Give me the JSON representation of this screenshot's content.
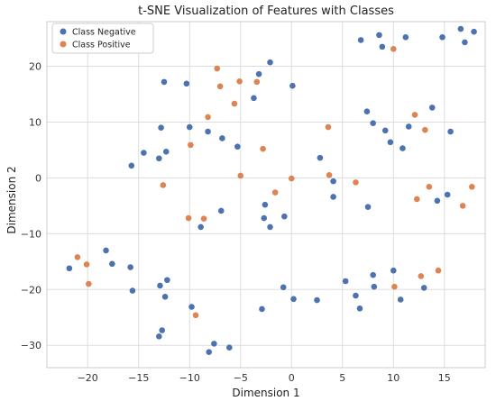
{
  "chart_data": {
    "type": "scatter",
    "title": "t-SNE Visualization of Features with Classes",
    "xlabel": "Dimension 1",
    "ylabel": "Dimension 2",
    "xlim": [
      -24,
      19
    ],
    "ylim": [
      -34,
      28
    ],
    "xticks": [
      -20,
      -15,
      -10,
      -5,
      0,
      5,
      10,
      15
    ],
    "yticks": [
      -30,
      -20,
      -10,
      0,
      10,
      20
    ],
    "grid": true,
    "legend_position": "top-left",
    "series": [
      {
        "name": "Class Negative",
        "color": "#4c72b0",
        "points": [
          [
            -21.8,
            -16.2
          ],
          [
            -18.2,
            -13.0
          ],
          [
            -17.6,
            -15.4
          ],
          [
            -15.8,
            -16.0
          ],
          [
            -15.6,
            -20.2
          ],
          [
            -15.7,
            2.2
          ],
          [
            -14.5,
            4.5
          ],
          [
            -13.0,
            3.5
          ],
          [
            -12.3,
            4.7
          ],
          [
            -12.8,
            9.0
          ],
          [
            -12.5,
            17.2
          ],
          [
            -10.3,
            16.9
          ],
          [
            -10.0,
            9.1
          ],
          [
            -8.2,
            8.3
          ],
          [
            -6.8,
            7.1
          ],
          [
            -5.3,
            5.6
          ],
          [
            -3.7,
            14.3
          ],
          [
            -3.2,
            18.6
          ],
          [
            -2.1,
            20.7
          ],
          [
            0.1,
            16.5
          ],
          [
            -12.9,
            -19.3
          ],
          [
            -12.4,
            -21.3
          ],
          [
            -12.2,
            -18.3
          ],
          [
            -13.0,
            -28.4
          ],
          [
            -12.7,
            -27.3
          ],
          [
            -9.8,
            -23.1
          ],
          [
            -8.9,
            -8.8
          ],
          [
            -6.9,
            -5.9
          ],
          [
            -7.6,
            -29.7
          ],
          [
            -8.1,
            -31.2
          ],
          [
            -6.1,
            -30.4
          ],
          [
            -2.6,
            -4.8
          ],
          [
            -2.7,
            -7.2
          ],
          [
            -2.1,
            -8.8
          ],
          [
            -0.7,
            -6.9
          ],
          [
            -2.9,
            -23.5
          ],
          [
            -0.8,
            -19.6
          ],
          [
            0.2,
            -21.7
          ],
          [
            2.5,
            -21.9
          ],
          [
            2.8,
            3.6
          ],
          [
            4.1,
            -0.6
          ],
          [
            4.1,
            -3.4
          ],
          [
            5.3,
            -18.5
          ],
          [
            6.3,
            -21.1
          ],
          [
            6.7,
            -23.4
          ],
          [
            6.8,
            24.7
          ],
          [
            7.4,
            11.9
          ],
          [
            7.5,
            -5.2
          ],
          [
            8.0,
            9.8
          ],
          [
            8.0,
            -17.4
          ],
          [
            8.1,
            -19.5
          ],
          [
            8.6,
            25.6
          ],
          [
            8.9,
            23.5
          ],
          [
            9.2,
            8.5
          ],
          [
            9.7,
            6.4
          ],
          [
            10.0,
            -16.6
          ],
          [
            10.7,
            -21.8
          ],
          [
            10.9,
            5.3
          ],
          [
            11.2,
            25.2
          ],
          [
            11.5,
            9.2
          ],
          [
            13.0,
            -19.7
          ],
          [
            13.8,
            12.6
          ],
          [
            14.3,
            -4.1
          ],
          [
            14.8,
            25.2
          ],
          [
            15.3,
            -3.0
          ],
          [
            15.6,
            8.3
          ],
          [
            16.6,
            26.7
          ],
          [
            17.0,
            24.3
          ],
          [
            17.9,
            26.2
          ]
        ]
      },
      {
        "name": "Class Positive",
        "color": "#dd8452",
        "points": [
          [
            -21.0,
            -14.2
          ],
          [
            -20.1,
            -15.5
          ],
          [
            -19.9,
            -19.0
          ],
          [
            -12.6,
            -1.3
          ],
          [
            -9.9,
            5.9
          ],
          [
            -10.1,
            -7.2
          ],
          [
            -8.6,
            -7.3
          ],
          [
            -8.2,
            10.9
          ],
          [
            -7.3,
            19.6
          ],
          [
            -7.0,
            16.4
          ],
          [
            -5.6,
            13.3
          ],
          [
            -5.1,
            17.3
          ],
          [
            -5.0,
            0.4
          ],
          [
            -3.4,
            17.2
          ],
          [
            -2.8,
            5.2
          ],
          [
            -1.6,
            -2.6
          ],
          [
            0.0,
            -0.1
          ],
          [
            -9.4,
            -24.6
          ],
          [
            3.6,
            9.1
          ],
          [
            3.7,
            0.5
          ],
          [
            6.3,
            -0.8
          ],
          [
            10.0,
            23.1
          ],
          [
            10.1,
            -19.5
          ],
          [
            12.1,
            11.3
          ],
          [
            12.3,
            -3.8
          ],
          [
            12.7,
            -17.6
          ],
          [
            13.1,
            8.6
          ],
          [
            13.5,
            -1.6
          ],
          [
            14.4,
            -16.6
          ],
          [
            16.8,
            -5.0
          ],
          [
            17.7,
            -1.6
          ]
        ]
      }
    ]
  }
}
